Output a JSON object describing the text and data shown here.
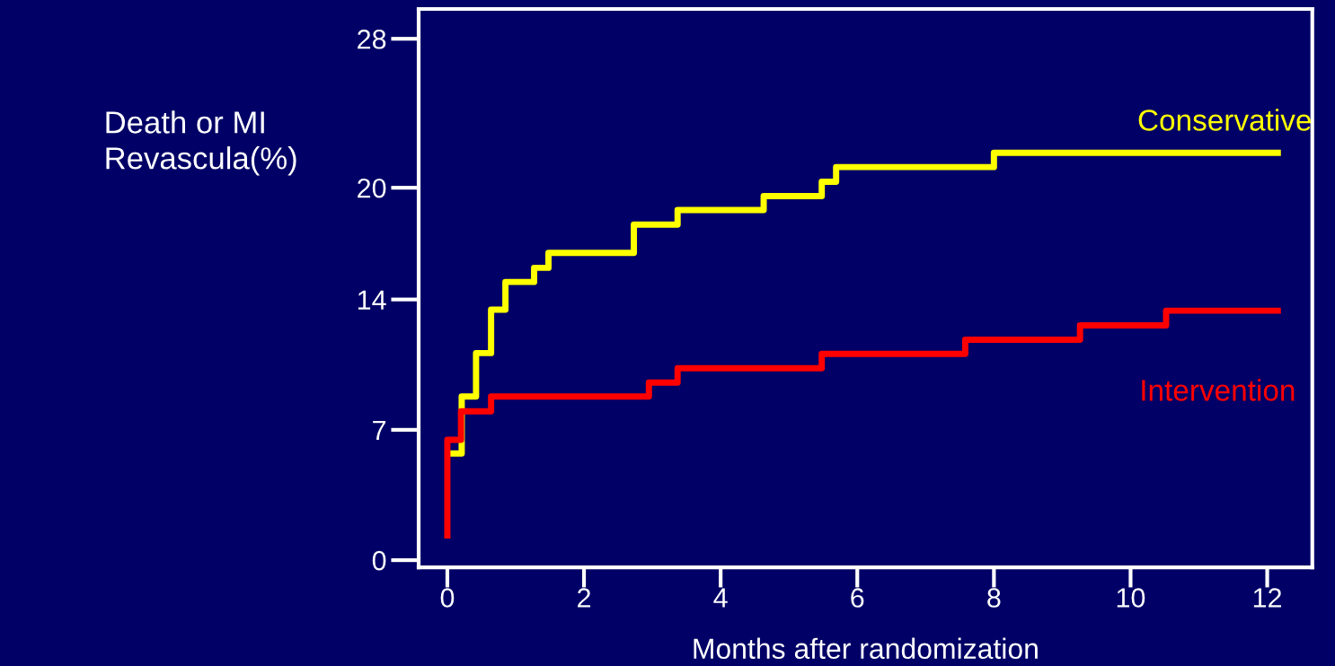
{
  "chart_data": {
    "type": "step",
    "xlabel": "Months after randomization",
    "ylabel": "Death or MI\nRevascula(%)",
    "xlim": [
      -0.42,
      12.66
    ],
    "xticks": [
      0,
      2,
      4,
      6,
      8,
      10,
      12
    ],
    "ylim": [
      -0.39,
      29.6
    ],
    "yticks": [
      0,
      7,
      14,
      20,
      28
    ],
    "grid": false,
    "legend": false,
    "series": [
      {
        "name": "Conservative",
        "color": "#ffff00",
        "x": [
          0,
          0.21,
          0.42,
          0.64,
          0.85,
          1.27,
          1.48,
          2.73,
          3.37,
          4.63,
          5.48,
          5.69,
          8.0,
          12.2
        ],
        "values": [
          5.73,
          8.79,
          11.12,
          13.45,
          14.94,
          15.7,
          16.5,
          18.02,
          18.8,
          19.55,
          20.32,
          21.11,
          21.88,
          21.88
        ]
      },
      {
        "name": "Intervention",
        "color": "#ff0000",
        "x": [
          0,
          0,
          0.2,
          0.64,
          2.95,
          3.37,
          5.48,
          7.58,
          9.26,
          10.52,
          12.2
        ],
        "values": [
          1.16,
          6.46,
          7.99,
          8.79,
          9.54,
          10.31,
          11.08,
          11.84,
          12.61,
          13.4,
          13.4
        ]
      }
    ]
  }
}
